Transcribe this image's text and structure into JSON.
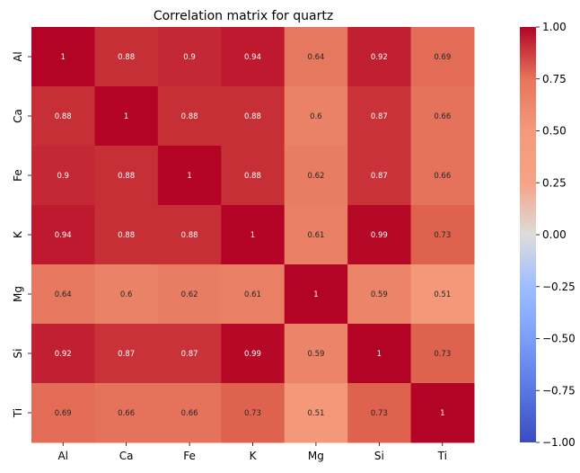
{
  "chart_data": {
    "type": "heatmap",
    "title": "Correlation matrix for quartz",
    "rows": [
      "Al",
      "Ca",
      "Fe",
      "K",
      "Mg",
      "Si",
      "Ti"
    ],
    "columns": [
      "Al",
      "Ca",
      "Fe",
      "K",
      "Mg",
      "Si",
      "Ti"
    ],
    "values": [
      [
        1,
        0.88,
        0.9,
        0.94,
        0.64,
        0.92,
        0.69
      ],
      [
        0.88,
        1,
        0.88,
        0.88,
        0.6,
        0.87,
        0.66
      ],
      [
        0.9,
        0.88,
        1,
        0.88,
        0.62,
        0.87,
        0.66
      ],
      [
        0.94,
        0.88,
        0.88,
        1,
        0.61,
        0.99,
        0.73
      ],
      [
        0.64,
        0.6,
        0.62,
        0.61,
        1,
        0.59,
        0.51
      ],
      [
        0.92,
        0.87,
        0.87,
        0.99,
        0.59,
        1,
        0.73
      ],
      [
        0.69,
        0.66,
        0.66,
        0.73,
        0.51,
        0.73,
        1
      ]
    ],
    "colormap": "coolwarm",
    "colorbar": {
      "range": [
        -1.0,
        1.0
      ],
      "ticks": [
        1.0,
        0.75,
        0.5,
        0.25,
        0.0,
        -0.25,
        -0.5,
        -0.75,
        -1.0
      ],
      "tick_labels": [
        "1.00",
        "0.75",
        "0.50",
        "0.25",
        "0.00",
        "−0.25",
        "−0.50",
        "−0.75",
        "−1.00"
      ]
    }
  }
}
